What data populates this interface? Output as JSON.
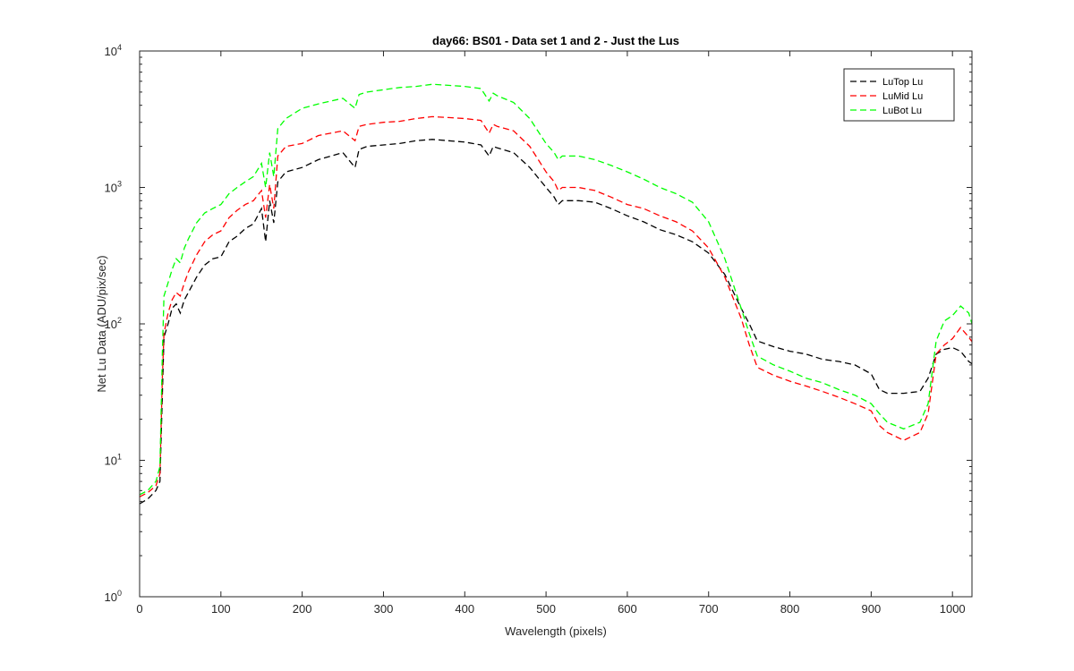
{
  "chart_data": {
    "type": "line",
    "title": "day66: BS01 - Data set 1 and 2 - Just the Lus",
    "xlabel": "Wavelength (pixels)",
    "ylabel": "Net Lu Data (ADU/pix/sec)",
    "xlim": [
      0,
      1024
    ],
    "ylim": [
      1,
      10000
    ],
    "yscale": "log",
    "grid": false,
    "legend_position": "top-right",
    "x_ticks": [
      0,
      100,
      200,
      300,
      400,
      500,
      600,
      700,
      800,
      900,
      1000
    ],
    "y_ticks": [
      {
        "value": 1,
        "base": "10",
        "exp": "0"
      },
      {
        "value": 10,
        "base": "10",
        "exp": "1"
      },
      {
        "value": 100,
        "base": "10",
        "exp": "2"
      },
      {
        "value": 1000,
        "base": "10",
        "exp": "3"
      },
      {
        "value": 10000,
        "base": "10",
        "exp": "4"
      }
    ],
    "series": [
      {
        "name": "LuTop  Lu",
        "color": "#000000",
        "x": [
          0,
          10,
          20,
          25,
          28,
          30,
          35,
          40,
          45,
          50,
          55,
          60,
          70,
          80,
          90,
          100,
          110,
          120,
          130,
          140,
          150,
          155,
          160,
          165,
          170,
          180,
          200,
          220,
          250,
          265,
          270,
          280,
          300,
          320,
          340,
          360,
          380,
          400,
          420,
          430,
          435,
          440,
          460,
          480,
          500,
          510,
          515,
          520,
          540,
          560,
          580,
          600,
          620,
          640,
          660,
          680,
          700,
          720,
          740,
          750,
          760,
          780,
          800,
          820,
          840,
          860,
          880,
          900,
          910,
          920,
          940,
          960,
          970,
          980,
          990,
          1000,
          1010,
          1020,
          1024
        ],
        "y": [
          4.8,
          5.2,
          6,
          7,
          30,
          80,
          100,
          130,
          140,
          120,
          150,
          170,
          220,
          270,
          300,
          310,
          400,
          440,
          500,
          540,
          700,
          400,
          800,
          550,
          1100,
          1300,
          1400,
          1600,
          1800,
          1400,
          1900,
          2000,
          2050,
          2100,
          2200,
          2250,
          2200,
          2150,
          2050,
          1700,
          2000,
          1950,
          1800,
          1400,
          1000,
          850,
          750,
          800,
          800,
          780,
          700,
          620,
          560,
          490,
          450,
          400,
          330,
          230,
          130,
          100,
          75,
          68,
          63,
          60,
          55,
          53,
          50,
          43,
          33,
          31,
          31,
          32,
          40,
          60,
          65,
          67,
          63,
          53,
          51
        ]
      },
      {
        "name": "LuMid  Lu",
        "color": "#ff0000",
        "x": [
          0,
          10,
          20,
          25,
          28,
          30,
          35,
          40,
          45,
          50,
          55,
          60,
          70,
          80,
          90,
          100,
          110,
          120,
          130,
          140,
          150,
          155,
          160,
          165,
          170,
          180,
          200,
          220,
          250,
          265,
          270,
          280,
          300,
          320,
          340,
          360,
          380,
          400,
          420,
          430,
          435,
          440,
          460,
          480,
          500,
          510,
          515,
          520,
          540,
          560,
          580,
          600,
          620,
          640,
          660,
          680,
          700,
          720,
          740,
          750,
          760,
          780,
          800,
          820,
          840,
          860,
          880,
          900,
          910,
          920,
          940,
          960,
          970,
          980,
          990,
          1000,
          1010,
          1020,
          1024
        ],
        "y": [
          5.4,
          5.8,
          6.5,
          8,
          40,
          85,
          120,
          150,
          170,
          160,
          200,
          240,
          320,
          400,
          450,
          480,
          600,
          680,
          750,
          800,
          950,
          600,
          1050,
          700,
          1700,
          2000,
          2100,
          2400,
          2600,
          2200,
          2800,
          2900,
          3000,
          3050,
          3200,
          3300,
          3250,
          3200,
          3100,
          2500,
          2900,
          2800,
          2600,
          2000,
          1300,
          1100,
          950,
          1000,
          1000,
          950,
          850,
          750,
          700,
          620,
          560,
          480,
          360,
          220,
          110,
          70,
          48,
          42,
          38,
          35,
          32,
          29,
          26,
          23,
          18,
          16,
          14,
          16,
          22,
          60,
          70,
          78,
          94,
          80,
          74
        ]
      },
      {
        "name": "LuBot  Lu",
        "color": "#00ff00",
        "x": [
          0,
          10,
          20,
          25,
          28,
          30,
          35,
          40,
          45,
          50,
          55,
          60,
          70,
          80,
          90,
          100,
          110,
          120,
          130,
          140,
          150,
          155,
          160,
          165,
          170,
          180,
          200,
          220,
          250,
          265,
          270,
          280,
          300,
          320,
          340,
          360,
          380,
          400,
          420,
          430,
          435,
          440,
          460,
          480,
          500,
          510,
          515,
          520,
          540,
          560,
          580,
          600,
          620,
          640,
          660,
          680,
          700,
          720,
          740,
          750,
          760,
          780,
          800,
          820,
          840,
          860,
          880,
          900,
          910,
          920,
          940,
          960,
          970,
          980,
          990,
          1000,
          1010,
          1020,
          1024
        ],
        "y": [
          5.6,
          6,
          7,
          9,
          60,
          160,
          200,
          250,
          300,
          280,
          360,
          420,
          550,
          650,
          700,
          750,
          900,
          1000,
          1100,
          1200,
          1500,
          1000,
          1800,
          1200,
          2700,
          3200,
          3800,
          4100,
          4500,
          3800,
          4800,
          5000,
          5200,
          5400,
          5500,
          5700,
          5600,
          5500,
          5300,
          4300,
          4900,
          4700,
          4200,
          3200,
          2100,
          1800,
          1600,
          1700,
          1700,
          1600,
          1450,
          1300,
          1150,
          1000,
          900,
          780,
          560,
          300,
          130,
          85,
          58,
          50,
          45,
          40,
          37,
          33,
          30,
          26,
          22,
          19,
          17,
          19,
          26,
          75,
          105,
          115,
          135,
          120,
          100
        ]
      }
    ]
  }
}
